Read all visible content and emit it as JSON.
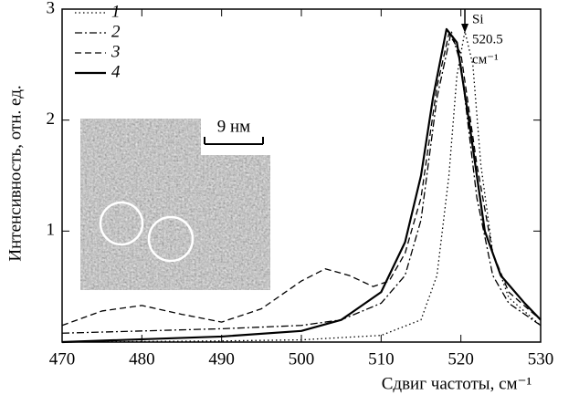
{
  "chart_data": {
    "type": "line",
    "x_label": "Сдвиг частоты, см⁻¹",
    "y_label": "Интенсивность, отн. ед.",
    "xlim": [
      470,
      530
    ],
    "xticks": [
      470,
      480,
      490,
      500,
      510,
      520,
      530
    ],
    "ylim": [
      0,
      3
    ],
    "yticks": [
      1,
      2,
      3
    ],
    "legend": "upper left",
    "series": [
      {
        "name": "1",
        "color": "#000000",
        "line_style": "dotted",
        "x": [
          470,
          490,
          500,
          510,
          515,
          517,
          518.5,
          519.5,
          520.5,
          521.5,
          522.5,
          524,
          526,
          530
        ],
        "values": [
          0.0,
          0.01,
          0.02,
          0.06,
          0.2,
          0.6,
          1.5,
          2.4,
          2.8,
          2.5,
          1.6,
          0.8,
          0.4,
          0.15
        ]
      },
      {
        "name": "2",
        "color": "#000000",
        "line_style": "dashdot",
        "x": [
          470,
          480,
          490,
          500,
          505,
          510,
          513,
          515,
          517,
          518.8,
          520,
          522,
          524,
          526,
          530
        ],
        "values": [
          0.08,
          0.1,
          0.12,
          0.15,
          0.2,
          0.35,
          0.6,
          1.1,
          2.2,
          2.8,
          2.5,
          1.3,
          0.6,
          0.35,
          0.15
        ]
      },
      {
        "name": "3",
        "color": "#000000",
        "line_style": "dashed",
        "x": [
          470,
          475,
          480,
          485,
          490,
          495,
          500,
          503,
          506,
          509,
          511,
          513,
          515,
          517,
          518.5,
          520,
          522,
          524,
          526,
          530
        ],
        "values": [
          0.15,
          0.28,
          0.33,
          0.25,
          0.18,
          0.3,
          0.55,
          0.66,
          0.6,
          0.5,
          0.55,
          0.8,
          1.3,
          2.3,
          2.78,
          2.6,
          1.6,
          0.8,
          0.45,
          0.2
        ]
      },
      {
        "name": "4",
        "color": "#000000",
        "line_style": "solid",
        "x": [
          470,
          490,
          500,
          505,
          510,
          513,
          515,
          516.5,
          518.2,
          519.5,
          521,
          523,
          525,
          528,
          530
        ],
        "values": [
          0.0,
          0.05,
          0.1,
          0.2,
          0.45,
          0.9,
          1.5,
          2.2,
          2.82,
          2.7,
          2.0,
          1.0,
          0.6,
          0.35,
          0.2
        ]
      }
    ],
    "annotation": {
      "x": 520.5,
      "lines": [
        "Si",
        "520.5",
        "см⁻¹"
      ]
    },
    "inset_label": "9 нм"
  }
}
